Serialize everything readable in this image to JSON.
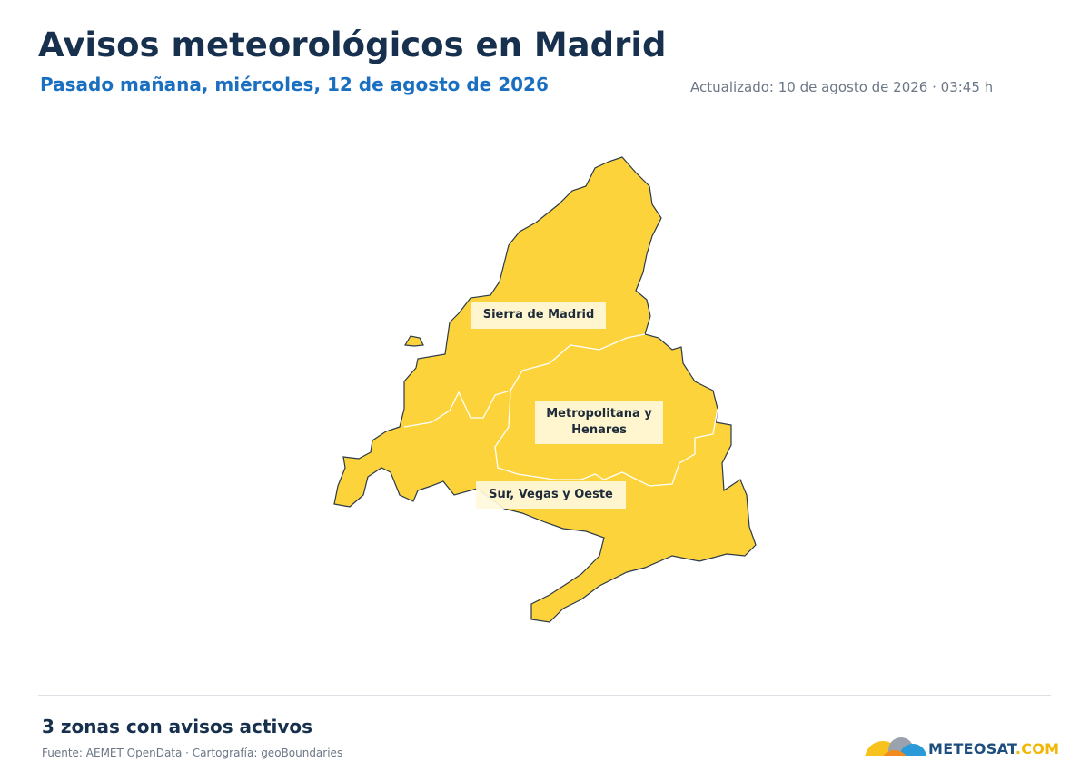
{
  "header": {
    "title": "Avisos meteorológicos en Madrid",
    "subtitle": "Pasado mañana, miércoles, 12 de agosto de 2026",
    "updated": "Actualizado: 10 de agosto de 2026 · 03:45 h"
  },
  "map": {
    "warning_color": "#fdd33b",
    "zones": [
      {
        "label": "Sierra de Madrid"
      },
      {
        "label": "Metropolitana y Henares"
      },
      {
        "label": "Sur, Vegas y Oeste"
      }
    ]
  },
  "footer": {
    "summary": "3 zonas con avisos activos",
    "source": "Fuente: AEMET OpenData · Cartografía: geoBoundaries",
    "logo": "METEOSAT",
    "logo_suffix": ".COM"
  }
}
